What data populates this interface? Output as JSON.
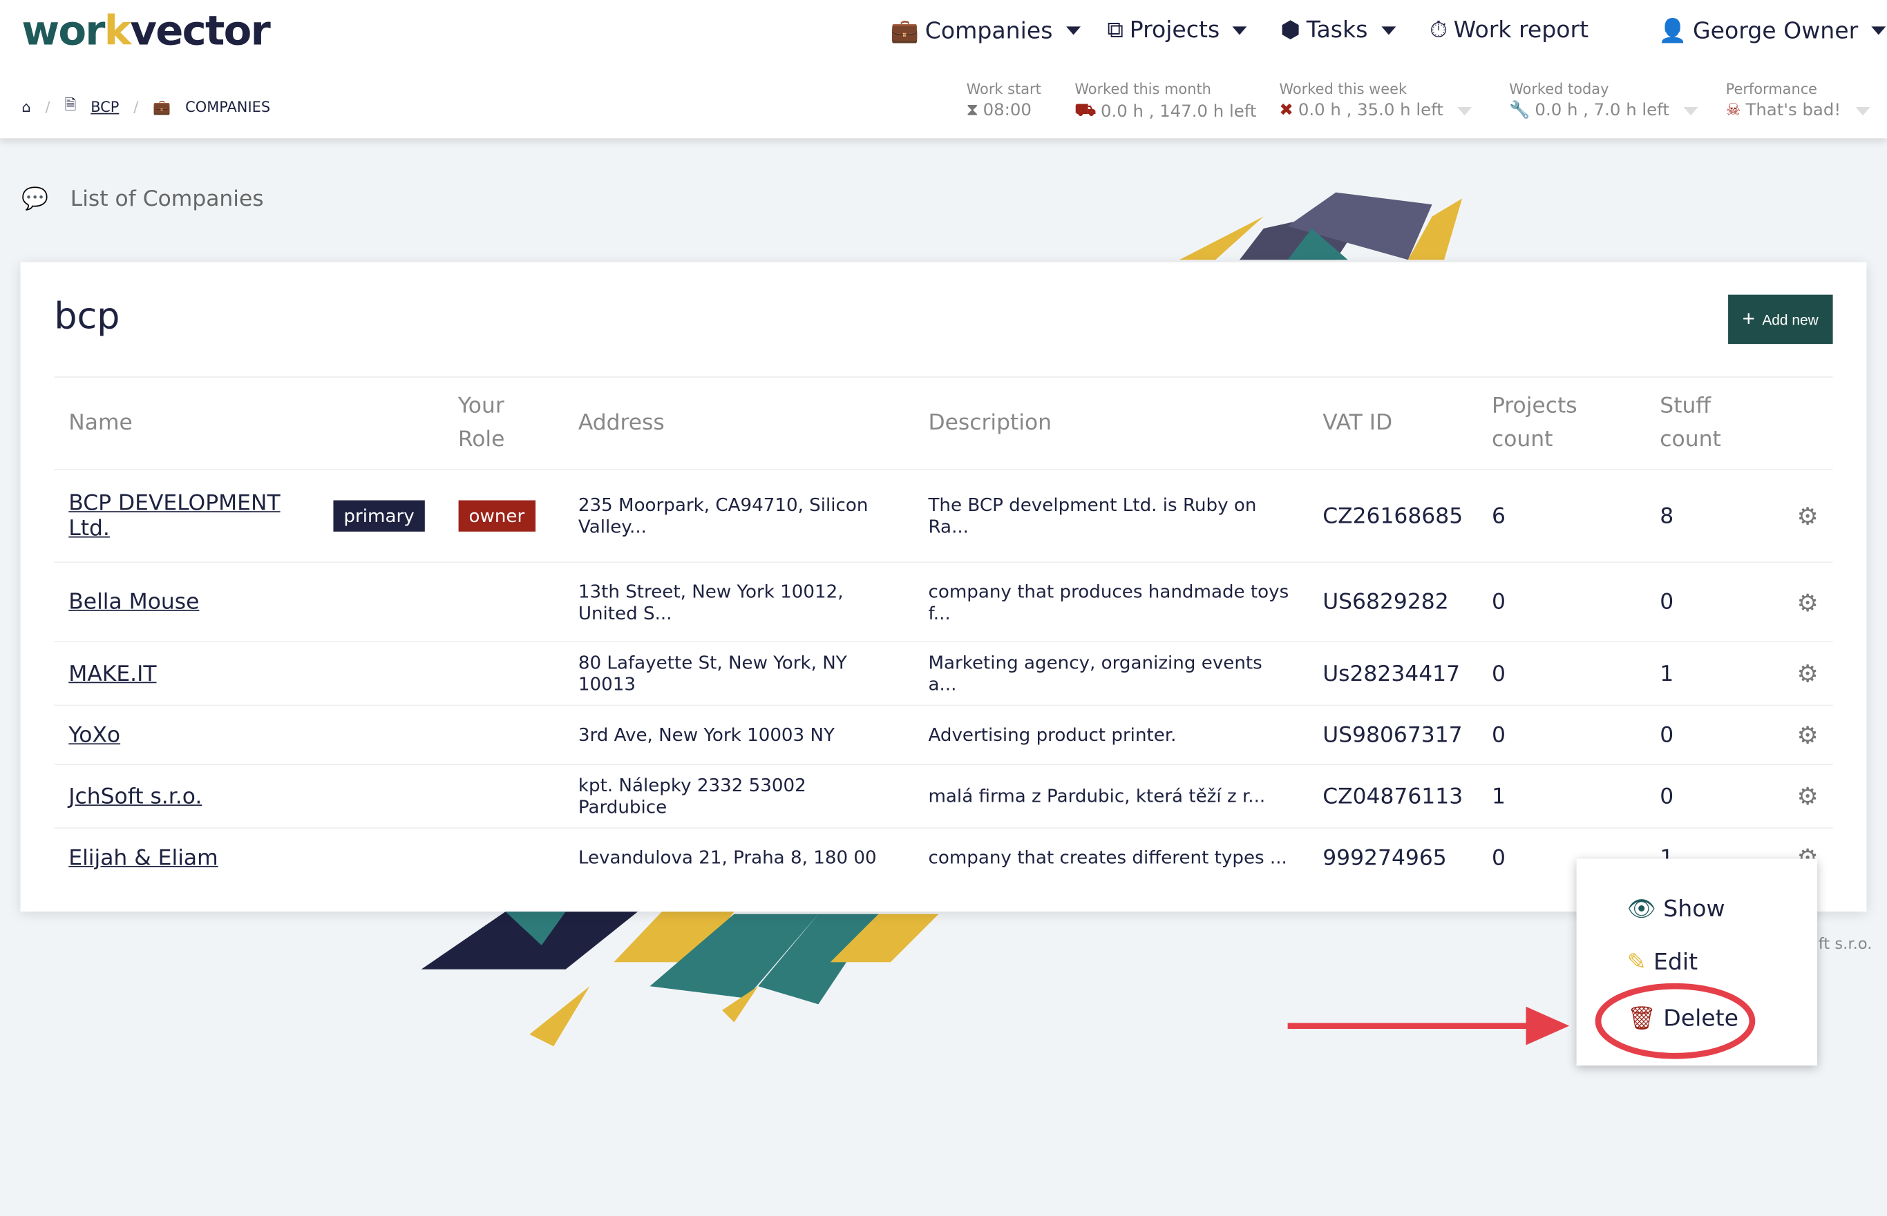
{
  "logo": {
    "part1": "wor",
    "part2": "k",
    "part3": "vect",
    "part4": "or"
  },
  "nav": [
    {
      "label": "Companies",
      "icon": "briefcase-icon"
    },
    {
      "label": "Projects",
      "icon": "cubes-icon"
    },
    {
      "label": "Tasks",
      "icon": "cube-icon"
    },
    {
      "label": "Work report",
      "icon": "stopwatch-icon"
    }
  ],
  "user": {
    "name": "George Owner"
  },
  "breadcrumb": {
    "home": "home-icon",
    "bcp": "BCP",
    "companies": "COMPANIES"
  },
  "stats": [
    {
      "label": "Work start",
      "value": "08:00",
      "icon": "hourglass-icon"
    },
    {
      "label": "Worked this month",
      "value": "0.0 h , 147.0 h left",
      "icon": "bulldozer-icon"
    },
    {
      "label": "Worked this week",
      "value": "0.0 h , 35.0 h left",
      "icon": "tools-icon"
    },
    {
      "label": "Worked today",
      "value": "0.0 h , 7.0 h left",
      "icon": "wrench-icon"
    },
    {
      "label": "Performance",
      "value": "That's bad!",
      "icon": "skull-crossbones-icon"
    }
  ],
  "page_title": "List of Companies",
  "card": {
    "title": "bcp",
    "add_label": "Add new"
  },
  "table": {
    "headers": [
      "Name",
      "",
      "Your Role",
      "Address",
      "Description",
      "VAT ID",
      "Projects count",
      "Stuff count",
      ""
    ],
    "rows": [
      {
        "name": "BCP DEVELOPMENT Ltd.",
        "badge": "primary",
        "role": "owner",
        "address": "235 Moorpark, CA94710, Silicon Valley...",
        "description": "The BCP develpment Ltd. is Ruby on Ra...",
        "vat": "CZ26168685",
        "projects": "6",
        "stuff": "8"
      },
      {
        "name": "Bella Mouse",
        "badge": "",
        "role": "",
        "address": "13th Street, New York 10012, United S...",
        "description": "company that produces handmade toys f...",
        "vat": "US6829282",
        "projects": "0",
        "stuff": "0"
      },
      {
        "name": "MAKE.IT",
        "badge": "",
        "role": "",
        "address": "80 Lafayette St, New York, NY 10013",
        "description": "Marketing agency, organizing events a...",
        "vat": "Us28234417",
        "projects": "0",
        "stuff": "1"
      },
      {
        "name": "YoXo",
        "badge": "",
        "role": "",
        "address": "3rd Ave, New York 10003 NY",
        "description": "Advertising product printer.",
        "vat": "US98067317",
        "projects": "0",
        "stuff": "0"
      },
      {
        "name": "JchSoft s.r.o.",
        "badge": "",
        "role": "",
        "address": "kpt. Nálepky 2332 53002 Pardubice",
        "description": "malá firma z Pardubic, která těží z r...",
        "vat": "CZ04876113",
        "projects": "1",
        "stuff": "0"
      },
      {
        "name": "Elijah & Eliam",
        "badge": "",
        "role": "",
        "address": "Levandulova 21, Praha 8, 180 00",
        "description": "company that creates different types ...",
        "vat": "999274965",
        "projects": "0",
        "stuff": "1"
      }
    ]
  },
  "menu": {
    "show": "Show",
    "edit": "Edit",
    "delete": "Delete"
  },
  "footer_partial": "ft s.r.o.",
  "colors": {
    "accent": "#1f4e4a",
    "primary_badge": "#1e2240",
    "owner_badge": "#9b2318",
    "annotation": "#e5404a"
  }
}
